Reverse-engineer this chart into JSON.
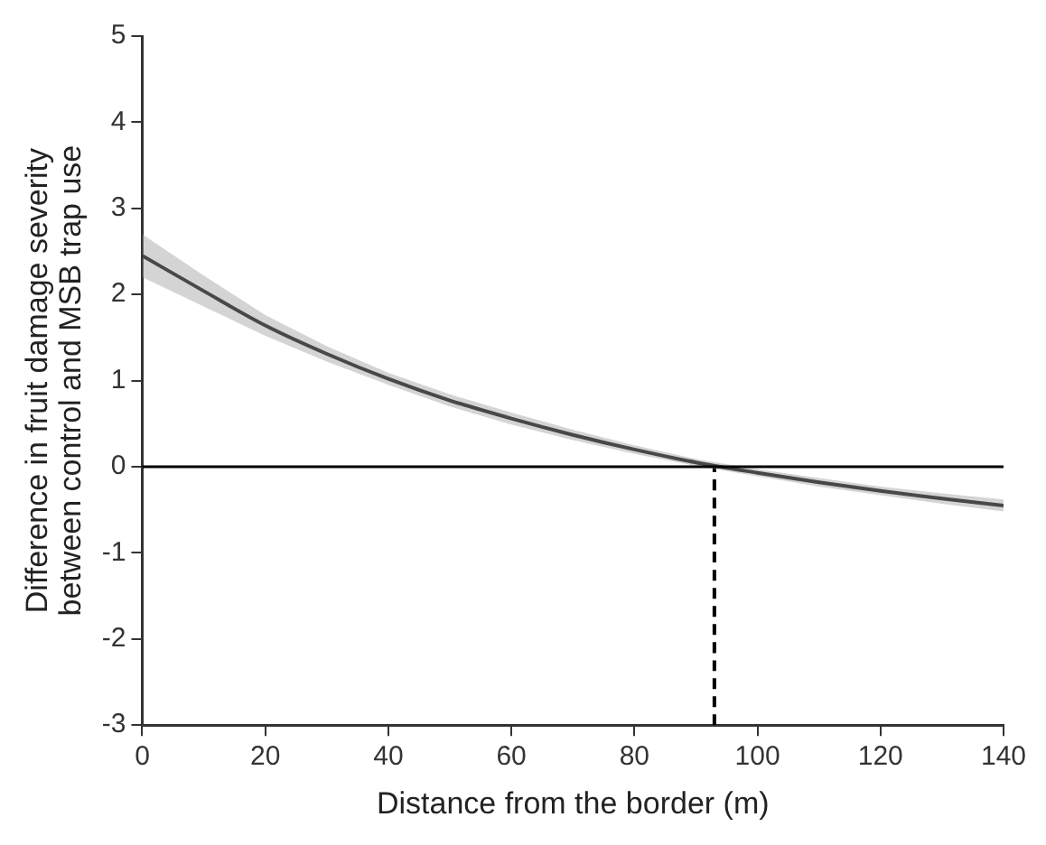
{
  "chart_data": {
    "type": "line",
    "xlabel": "Distance from the border (m)",
    "ylabel": "Difference in fruit damage severity between control and MSB trap use",
    "x": [
      0,
      10,
      20,
      30,
      40,
      50,
      60,
      70,
      80,
      90,
      100,
      110,
      120,
      130,
      140
    ],
    "series": [
      {
        "color": "#000000",
        "values": [
          2.45,
          2.04,
          1.64,
          1.31,
          1.02,
          0.77,
          0.56,
          0.37,
          0.2,
          0.05,
          -0.07,
          -0.18,
          -0.28,
          -0.37,
          -0.45
        ],
        "lower": [
          2.2,
          1.86,
          1.52,
          1.22,
          0.95,
          0.7,
          0.49,
          0.31,
          0.15,
          0.01,
          -0.11,
          -0.23,
          -0.33,
          -0.43,
          -0.52
        ],
        "upper": [
          2.7,
          2.22,
          1.76,
          1.4,
          1.09,
          0.84,
          0.63,
          0.43,
          0.25,
          0.09,
          -0.03,
          -0.13,
          -0.23,
          -0.31,
          -0.38
        ]
      },
      {
        "type": "line",
        "color": "#000000",
        "line_style": "dashed",
        "x": [
          93,
          93
        ],
        "values": [
          -3,
          0
        ]
      }
    ],
    "ref_lines": [
      {
        "axis": "y",
        "value": 0,
        "color": "#000000",
        "line_style": "solid"
      }
    ],
    "xlim": [
      0,
      140
    ],
    "xticks": [
      0,
      20,
      40,
      60,
      80,
      100,
      120,
      140
    ],
    "ylim": [
      -3,
      5
    ],
    "yticks": [
      -3,
      -2,
      -1,
      0,
      1,
      2,
      3,
      4,
      5
    ],
    "grid": false,
    "legend": false,
    "marker": "none"
  }
}
